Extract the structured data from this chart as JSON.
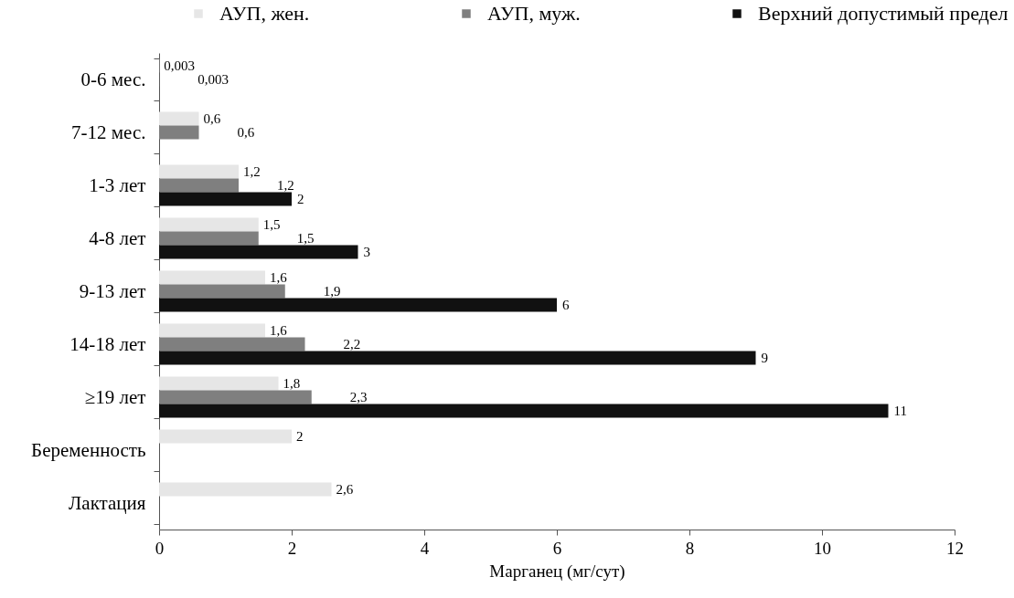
{
  "chart_data": {
    "type": "bar",
    "orientation": "horizontal",
    "xlabel": "Марганец (мг/сут)",
    "categories": [
      "0-6 мес.",
      "7-12 мес.",
      "1-3 лет",
      "4-8 лет",
      "9-13 лет",
      "14-18 лет",
      "≥19 лет",
      "Беременность",
      "Лактация"
    ],
    "series": [
      {
        "name": "АУП, жен.",
        "color": "#e6e6e6",
        "values": [
          0.003,
          0.6,
          1.2,
          1.5,
          1.6,
          1.6,
          1.8,
          2,
          2.6
        ],
        "value_labels": [
          "0,003",
          "0,6",
          "1,2",
          "1,5",
          "1,6",
          "1,6",
          "1,8",
          "2",
          "2,6"
        ]
      },
      {
        "name": "АУП, муж.",
        "color": "#7f7f7f",
        "values": [
          0.003,
          0.6,
          1.2,
          1.5,
          1.9,
          2.2,
          2.3,
          null,
          null
        ],
        "value_labels": [
          "0,003",
          "0,6",
          "1,2",
          "1,5",
          "1,9",
          "2,2",
          "2,3",
          null,
          null
        ]
      },
      {
        "name": "Верхний допустимый предел",
        "color": "#111111",
        "values": [
          null,
          null,
          2,
          3,
          6,
          9,
          11,
          null,
          null
        ],
        "value_labels": [
          null,
          null,
          "2",
          "3",
          "6",
          "9",
          "11",
          null,
          null
        ]
      }
    ],
    "xlim": [
      0,
      12
    ],
    "xticks": [
      0,
      2,
      4,
      6,
      8,
      10,
      12
    ],
    "legend": "top"
  }
}
